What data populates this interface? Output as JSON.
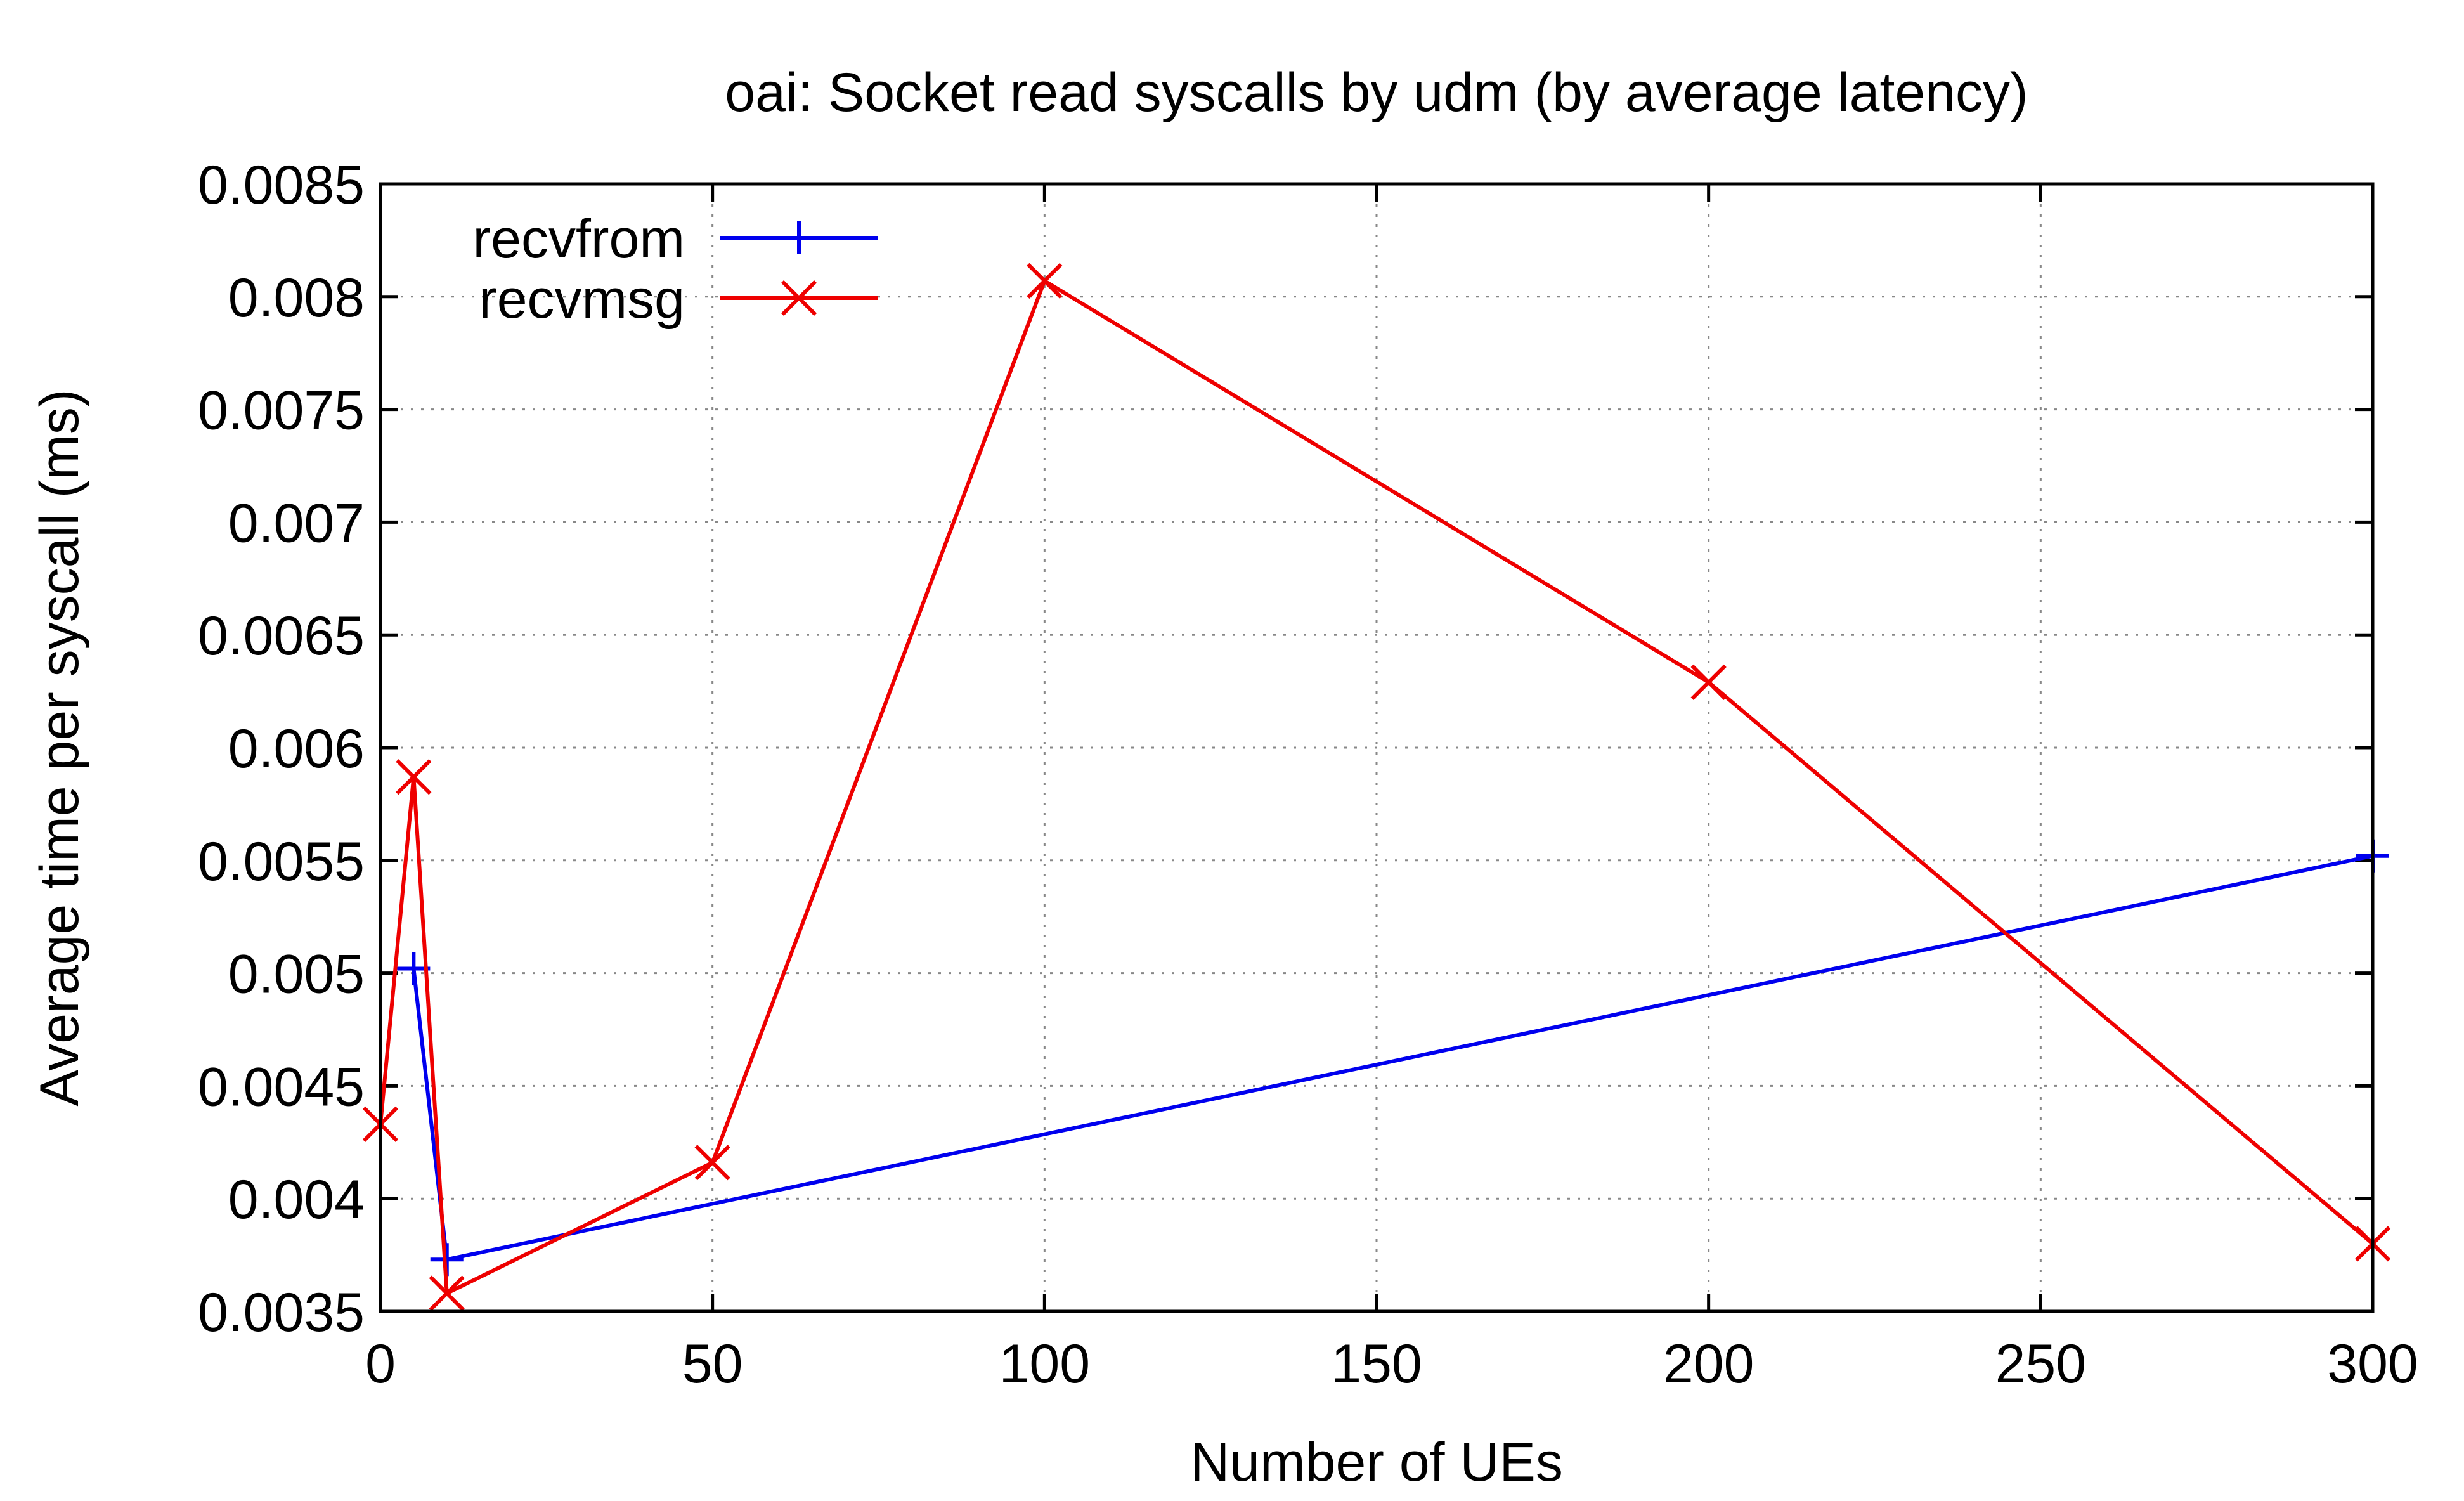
{
  "chart_data": {
    "type": "line",
    "title": "oai: Socket read syscalls by udm (by average latency)",
    "xlabel": "Number of UEs",
    "ylabel": "Average time per syscall (ms)",
    "xlim": [
      0,
      300
    ],
    "ylim": [
      0.0035,
      0.0085
    ],
    "xticks": [
      0,
      50,
      100,
      150,
      200,
      250,
      300
    ],
    "xtick_labels": [
      "0",
      "50",
      "100",
      "150",
      "200",
      "250",
      "300"
    ],
    "yticks": [
      0.0035,
      0.004,
      0.0045,
      0.005,
      0.0055,
      0.006,
      0.0065,
      0.007,
      0.0075,
      0.008,
      0.0085
    ],
    "ytick_labels": [
      "0.0035",
      "0.004",
      "0.0045",
      "0.005",
      "0.0055",
      "0.006",
      "0.0065",
      "0.007",
      "0.0075",
      "0.008",
      "0.0085"
    ],
    "grid": true,
    "legend_position": "top-left",
    "series": [
      {
        "name": "recvfrom",
        "color": "#0000ee",
        "marker": "plus",
        "points": [
          [
            5,
            0.00502
          ],
          [
            10,
            0.00373
          ],
          [
            300,
            0.00552
          ]
        ]
      },
      {
        "name": "recvmsg",
        "color": "#ee0000",
        "marker": "cross",
        "points": [
          [
            0,
            0.00433
          ],
          [
            5,
            0.00587
          ],
          [
            10,
            0.00358
          ],
          [
            50,
            0.00416
          ],
          [
            100,
            0.00807
          ],
          [
            200,
            0.00629
          ],
          [
            300,
            0.0038
          ]
        ]
      }
    ]
  }
}
